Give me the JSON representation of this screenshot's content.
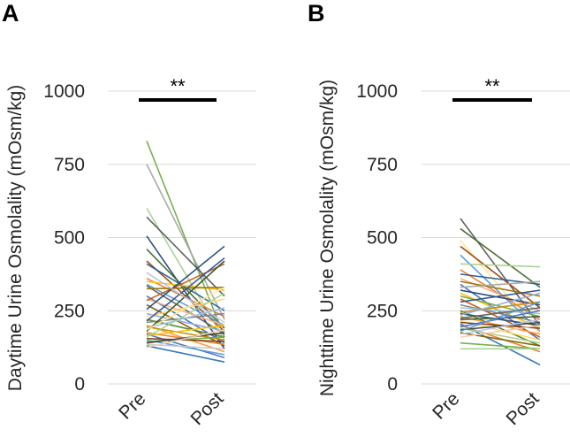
{
  "chart_data": [
    {
      "type": "line",
      "panel_label": "A",
      "ylabel": "Daytime Urine Osmolality (mOsm/kg)",
      "categories": [
        "Pre",
        "Post"
      ],
      "ylim": [
        0,
        1000
      ],
      "yticks": [
        0,
        250,
        500,
        750,
        1000
      ],
      "significance": "**",
      "grid": true,
      "series": [
        {
          "color": "#70ad47",
          "values": [
            830,
            160
          ]
        },
        {
          "color": "#a5a5a5",
          "values": [
            750,
            220
          ]
        },
        {
          "color": "#a9d18e",
          "values": [
            600,
            150
          ]
        },
        {
          "color": "#595959",
          "values": [
            570,
            300
          ]
        },
        {
          "color": "#264478",
          "values": [
            505,
            120
          ]
        },
        {
          "color": "#43682b",
          "values": [
            460,
            190
          ]
        },
        {
          "color": "#9e480e",
          "values": [
            420,
            180
          ]
        },
        {
          "color": "#255e91",
          "values": [
            410,
            250
          ]
        },
        {
          "color": "#ed7d31",
          "values": [
            360,
            230
          ]
        },
        {
          "color": "#ffc000",
          "values": [
            350,
            320
          ]
        },
        {
          "color": "#5b9bd5",
          "values": [
            340,
            200
          ]
        },
        {
          "color": "#636363",
          "values": [
            335,
            170
          ]
        },
        {
          "color": "#997300",
          "values": [
            325,
            330
          ]
        },
        {
          "color": "#4472c4",
          "values": [
            300,
            140
          ]
        },
        {
          "color": "#f4b183",
          "values": [
            290,
            200
          ]
        },
        {
          "color": "#c55a11",
          "values": [
            285,
            410
          ]
        },
        {
          "color": "#7f6000",
          "values": [
            270,
            130
          ]
        },
        {
          "color": "#1f4e79",
          "values": [
            255,
            470
          ]
        },
        {
          "color": "#8faadc",
          "values": [
            240,
            180
          ]
        },
        {
          "color": "#ffd966",
          "values": [
            230,
            290
          ]
        },
        {
          "color": "#548235",
          "values": [
            220,
            160
          ]
        },
        {
          "color": "#2f5597",
          "values": [
            215,
            430
          ]
        },
        {
          "color": "#7f7f7f",
          "values": [
            210,
            240
          ]
        },
        {
          "color": "#ff9933",
          "values": [
            200,
            110
          ]
        },
        {
          "color": "#bf9000",
          "values": [
            195,
            150
          ]
        },
        {
          "color": "#9dc3e6",
          "values": [
            190,
            260
          ]
        },
        {
          "color": "#385723",
          "values": [
            180,
            420
          ]
        },
        {
          "color": "#ed7d31",
          "values": [
            175,
            135
          ]
        },
        {
          "color": "#4472c4",
          "values": [
            170,
            90
          ]
        },
        {
          "color": "#ffc000",
          "values": [
            165,
            200
          ]
        },
        {
          "color": "#a9d18e",
          "values": [
            160,
            310
          ]
        },
        {
          "color": "#843c0c",
          "values": [
            155,
            145
          ]
        },
        {
          "color": "#5b9bd5",
          "values": [
            150,
            100
          ]
        },
        {
          "color": "#70ad47",
          "values": [
            145,
            160
          ]
        },
        {
          "color": "#404040",
          "values": [
            140,
            175
          ]
        },
        {
          "color": "#c9c9c9",
          "values": [
            135,
            120
          ]
        },
        {
          "color": "#2e75b6",
          "values": [
            130,
            75
          ]
        },
        {
          "color": "#f8cbad",
          "values": [
            125,
            185
          ]
        },
        {
          "color": "#ffe699",
          "values": [
            185,
            330
          ]
        },
        {
          "color": "#b4c7e7",
          "values": [
            380,
            210
          ]
        }
      ]
    },
    {
      "type": "line",
      "panel_label": "B",
      "ylabel": "Nighttime Urine Osmolality (mOsm/kg)",
      "categories": [
        "Pre",
        "Post"
      ],
      "ylim": [
        0,
        1000
      ],
      "yticks": [
        0,
        250,
        500,
        750,
        1000
      ],
      "significance": "**",
      "grid": true,
      "series": [
        {
          "color": "#595959",
          "values": [
            565,
            200
          ]
        },
        {
          "color": "#43682b",
          "values": [
            530,
            330
          ]
        },
        {
          "color": "#ffe699",
          "values": [
            490,
            170
          ]
        },
        {
          "color": "#9e480e",
          "values": [
            470,
            260
          ]
        },
        {
          "color": "#5b9bd5",
          "values": [
            440,
            180
          ]
        },
        {
          "color": "#a9d18e",
          "values": [
            410,
            400
          ]
        },
        {
          "color": "#ed7d31",
          "values": [
            390,
            220
          ]
        },
        {
          "color": "#255e91",
          "values": [
            375,
            340
          ]
        },
        {
          "color": "#f4b183",
          "values": [
            360,
            250
          ]
        },
        {
          "color": "#997300",
          "values": [
            350,
            300
          ]
        },
        {
          "color": "#4472c4",
          "values": [
            340,
            150
          ]
        },
        {
          "color": "#a5a5a5",
          "values": [
            330,
            350
          ]
        },
        {
          "color": "#264478",
          "values": [
            320,
            270
          ]
        },
        {
          "color": "#ffc000",
          "values": [
            310,
            190
          ]
        },
        {
          "color": "#70ad47",
          "values": [
            300,
            230
          ]
        },
        {
          "color": "#c55a11",
          "values": [
            290,
            160
          ]
        },
        {
          "color": "#2f5597",
          "values": [
            280,
            320
          ]
        },
        {
          "color": "#7f7f7f",
          "values": [
            270,
            210
          ]
        },
        {
          "color": "#9dc3e6",
          "values": [
            260,
            240
          ]
        },
        {
          "color": "#548235",
          "values": [
            250,
            130
          ]
        },
        {
          "color": "#bf9000",
          "values": [
            245,
            280
          ]
        },
        {
          "color": "#1f4e79",
          "values": [
            240,
            200
          ]
        },
        {
          "color": "#8faadc",
          "values": [
            235,
            310
          ]
        },
        {
          "color": "#ff9933",
          "values": [
            230,
            170
          ]
        },
        {
          "color": "#636363",
          "values": [
            225,
            260
          ]
        },
        {
          "color": "#385723",
          "values": [
            220,
            230
          ]
        },
        {
          "color": "#ffd966",
          "values": [
            215,
            150
          ]
        },
        {
          "color": "#843c0c",
          "values": [
            210,
            190
          ]
        },
        {
          "color": "#2e75b6",
          "values": [
            205,
            65
          ]
        },
        {
          "color": "#ed7d31",
          "values": [
            200,
            110
          ]
        },
        {
          "color": "#4472c4",
          "values": [
            195,
            250
          ]
        },
        {
          "color": "#a9d18e",
          "values": [
            190,
            140
          ]
        },
        {
          "color": "#404040",
          "values": [
            185,
            210
          ]
        },
        {
          "color": "#5b9bd5",
          "values": [
            180,
            280
          ]
        },
        {
          "color": "#7f6000",
          "values": [
            175,
            130
          ]
        },
        {
          "color": "#b4c7e7",
          "values": [
            170,
            220
          ]
        },
        {
          "color": "#f8cbad",
          "values": [
            160,
            200
          ]
        },
        {
          "color": "#70ad47",
          "values": [
            140,
            120
          ]
        },
        {
          "color": "#a9d18e",
          "values": [
            120,
            120
          ]
        }
      ]
    }
  ]
}
